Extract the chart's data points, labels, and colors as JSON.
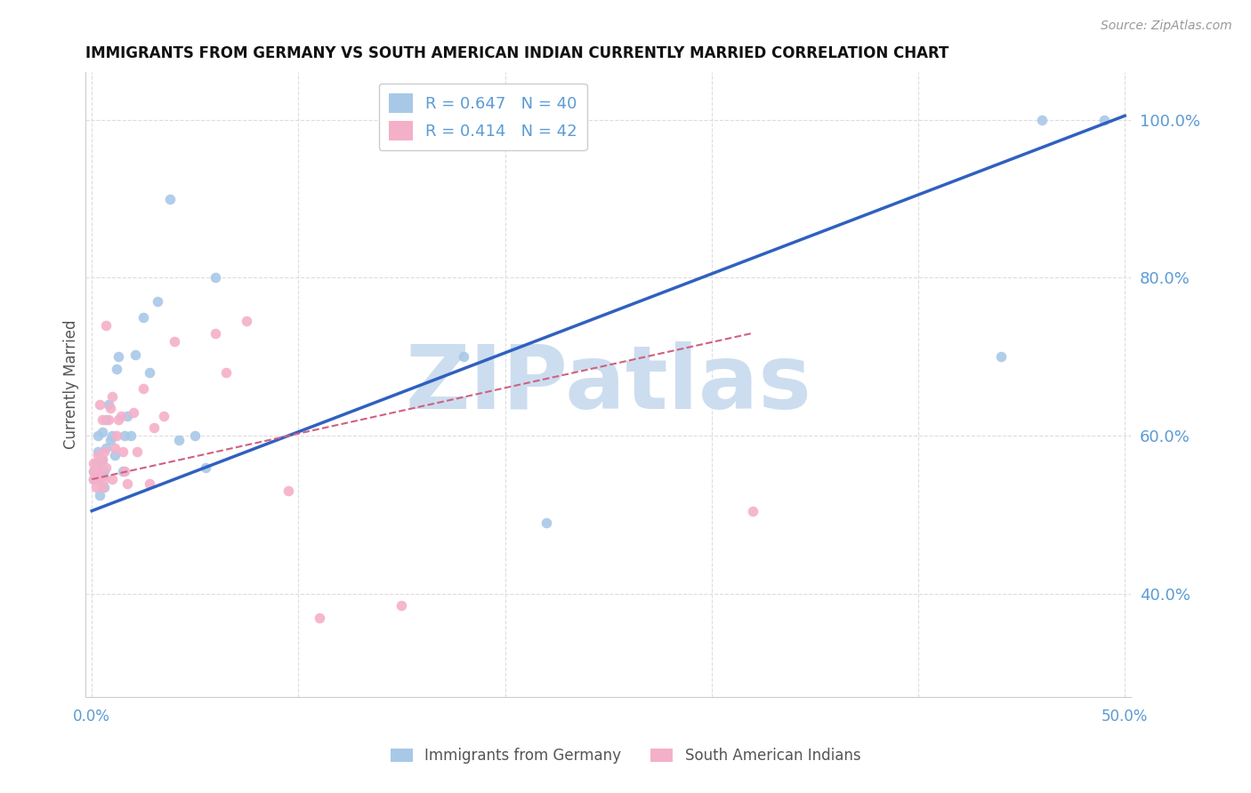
{
  "title": "IMMIGRANTS FROM GERMANY VS SOUTH AMERICAN INDIAN CURRENTLY MARRIED CORRELATION CHART",
  "source": "Source: ZipAtlas.com",
  "ylabel": "Currently Married",
  "right_yticks": [
    "100.0%",
    "80.0%",
    "60.0%",
    "40.0%"
  ],
  "right_ytick_vals": [
    1.0,
    0.8,
    0.6,
    0.4
  ],
  "watermark": "ZIPatlas",
  "legend_blue_r": "R = 0.647",
  "legend_blue_n": "N = 40",
  "legend_pink_r": "R = 0.414",
  "legend_pink_n": "N = 42",
  "legend_label_blue": "Immigrants from Germany",
  "legend_label_pink": "South American Indians",
  "blue_scatter_x": [
    0.001,
    0.001,
    0.002,
    0.002,
    0.003,
    0.003,
    0.003,
    0.004,
    0.004,
    0.005,
    0.005,
    0.005,
    0.006,
    0.006,
    0.007,
    0.007,
    0.008,
    0.009,
    0.01,
    0.011,
    0.012,
    0.013,
    0.015,
    0.016,
    0.017,
    0.019,
    0.021,
    0.025,
    0.028,
    0.032,
    0.038,
    0.042,
    0.05,
    0.055,
    0.06,
    0.18,
    0.22,
    0.44,
    0.46,
    0.49
  ],
  "blue_scatter_y": [
    0.545,
    0.555,
    0.545,
    0.565,
    0.555,
    0.58,
    0.6,
    0.525,
    0.565,
    0.55,
    0.57,
    0.605,
    0.535,
    0.555,
    0.62,
    0.585,
    0.64,
    0.595,
    0.6,
    0.575,
    0.685,
    0.7,
    0.555,
    0.6,
    0.625,
    0.6,
    0.703,
    0.75,
    0.68,
    0.77,
    0.9,
    0.595,
    0.6,
    0.56,
    0.8,
    0.7,
    0.49,
    0.7,
    1.0,
    1.0
  ],
  "pink_scatter_x": [
    0.001,
    0.001,
    0.001,
    0.002,
    0.002,
    0.002,
    0.003,
    0.003,
    0.004,
    0.004,
    0.005,
    0.005,
    0.005,
    0.006,
    0.006,
    0.007,
    0.007,
    0.008,
    0.009,
    0.01,
    0.01,
    0.011,
    0.012,
    0.013,
    0.014,
    0.015,
    0.016,
    0.017,
    0.02,
    0.022,
    0.025,
    0.028,
    0.03,
    0.035,
    0.04,
    0.06,
    0.065,
    0.075,
    0.095,
    0.11,
    0.15,
    0.32
  ],
  "pink_scatter_y": [
    0.545,
    0.555,
    0.565,
    0.535,
    0.55,
    0.56,
    0.545,
    0.575,
    0.555,
    0.64,
    0.535,
    0.57,
    0.62,
    0.545,
    0.58,
    0.56,
    0.74,
    0.62,
    0.635,
    0.545,
    0.65,
    0.585,
    0.6,
    0.62,
    0.625,
    0.58,
    0.555,
    0.54,
    0.63,
    0.58,
    0.66,
    0.54,
    0.61,
    0.625,
    0.72,
    0.73,
    0.68,
    0.745,
    0.53,
    0.37,
    0.385,
    0.505
  ],
  "xlim_min": -0.003,
  "xlim_max": 0.503,
  "ylim_min": 0.27,
  "ylim_max": 1.06,
  "blue_line_x": [
    0.0,
    0.5
  ],
  "blue_line_y": [
    0.505,
    1.005
  ],
  "pink_line_x": [
    0.0,
    0.32
  ],
  "pink_line_y": [
    0.545,
    0.73
  ],
  "blue_color": "#a8c8e8",
  "pink_color": "#f4b0c8",
  "blue_line_color": "#3060c0",
  "pink_line_color": "#d06080",
  "grid_color": "#dddddd",
  "title_color": "#111111",
  "right_axis_color": "#5b9bd5",
  "watermark_color": "#ccddef",
  "background_color": "#ffffff"
}
